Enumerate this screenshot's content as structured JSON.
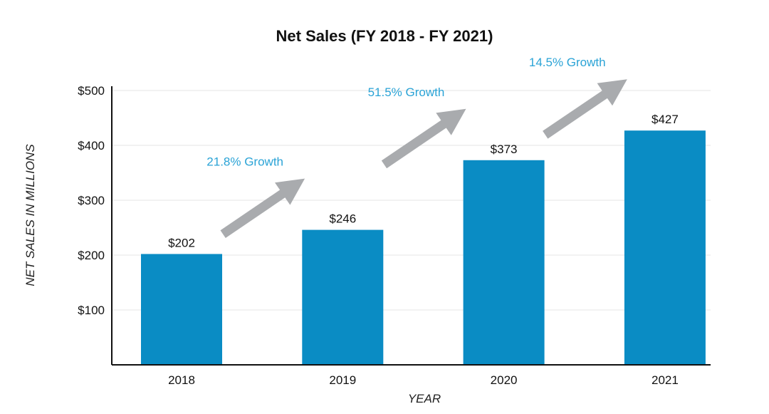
{
  "colors": {
    "bar": "#0a8cc4",
    "arrow": "#a9abae",
    "growth_text": "#2aa3d6",
    "grid": "#e6e6e6",
    "axis": "#111111"
  },
  "chart_data": {
    "type": "bar",
    "title": "Net Sales (FY 2018 - FY 2021)",
    "xlabel": "YEAR",
    "ylabel": "NET SALES IN MILLIONS",
    "categories": [
      "2018",
      "2019",
      "2020",
      "2021"
    ],
    "values": [
      202,
      246,
      373,
      427
    ],
    "value_labels": [
      "$202",
      "$246",
      "$373",
      "$427"
    ],
    "ylim": [
      0,
      500
    ],
    "yticks": [
      100,
      200,
      300,
      400,
      500
    ],
    "ytick_labels": [
      "$100",
      "$200",
      "$300",
      "$400",
      "$500"
    ],
    "grid": true,
    "legend": "none",
    "annotations": [
      {
        "text": "21.8% Growth",
        "between": [
          "2018",
          "2019"
        ]
      },
      {
        "text": "51.5% Growth",
        "between": [
          "2019",
          "2020"
        ]
      },
      {
        "text": "14.5% Growth",
        "between": [
          "2020",
          "2021"
        ]
      }
    ]
  }
}
